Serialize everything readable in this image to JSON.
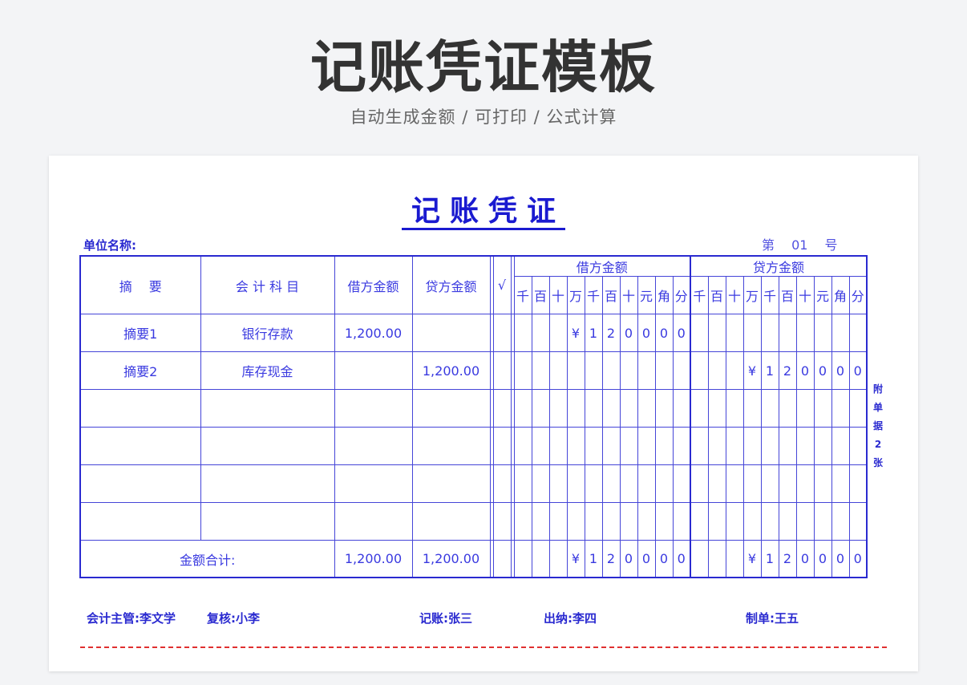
{
  "header": {
    "title": "记账凭证模板",
    "subtitle": "自动生成金额 / 可打印 / 公式计算"
  },
  "voucher": {
    "title": "记账凭证",
    "unit_label": "单位名称:",
    "number_label": "第 01 号",
    "columns": {
      "summary": "摘　 要",
      "account": "会 计 科 目",
      "debit": "借方金额",
      "credit": "贷方金额",
      "check": "√",
      "debit_digits": "借方金额",
      "credit_digits": "贷方金额"
    },
    "digit_units": [
      "千",
      "百",
      "十",
      "万",
      "千",
      "百",
      "十",
      "元",
      "角",
      "分"
    ],
    "rows": [
      {
        "summary": "摘要1",
        "account": "银行存款",
        "debit": "1,200.00",
        "credit": "",
        "debit_digits": [
          "",
          "",
          "",
          "¥",
          "1",
          "2",
          "0",
          "0",
          "0",
          "0"
        ],
        "credit_digits": [
          "",
          "",
          "",
          "",
          "",
          "",
          "",
          "",
          "",
          ""
        ]
      },
      {
        "summary": "摘要2",
        "account": "库存现金",
        "debit": "",
        "credit": "1,200.00",
        "debit_digits": [
          "",
          "",
          "",
          "",
          "",
          "",
          "",
          "",
          "",
          ""
        ],
        "credit_digits": [
          "",
          "",
          "",
          "¥",
          "1",
          "2",
          "0",
          "0",
          "0",
          "0"
        ]
      },
      {
        "summary": "",
        "account": "",
        "debit": "",
        "credit": "",
        "debit_digits": [
          "",
          "",
          "",
          "",
          "",
          "",
          "",
          "",
          "",
          ""
        ],
        "credit_digits": [
          "",
          "",
          "",
          "",
          "",
          "",
          "",
          "",
          "",
          ""
        ]
      },
      {
        "summary": "",
        "account": "",
        "debit": "",
        "credit": "",
        "debit_digits": [
          "",
          "",
          "",
          "",
          "",
          "",
          "",
          "",
          "",
          ""
        ],
        "credit_digits": [
          "",
          "",
          "",
          "",
          "",
          "",
          "",
          "",
          "",
          ""
        ]
      },
      {
        "summary": "",
        "account": "",
        "debit": "",
        "credit": "",
        "debit_digits": [
          "",
          "",
          "",
          "",
          "",
          "",
          "",
          "",
          "",
          ""
        ],
        "credit_digits": [
          "",
          "",
          "",
          "",
          "",
          "",
          "",
          "",
          "",
          ""
        ]
      },
      {
        "summary": "",
        "account": "",
        "debit": "",
        "credit": "",
        "debit_digits": [
          "",
          "",
          "",
          "",
          "",
          "",
          "",
          "",
          "",
          ""
        ],
        "credit_digits": [
          "",
          "",
          "",
          "",
          "",
          "",
          "",
          "",
          "",
          ""
        ]
      }
    ],
    "total": {
      "label": "金额合计:",
      "debit": "1,200.00",
      "credit": "1,200.00",
      "debit_digits": [
        "",
        "",
        "",
        "¥",
        "1",
        "2",
        "0",
        "0",
        "0",
        "0"
      ],
      "credit_digits": [
        "",
        "",
        "",
        "¥",
        "1",
        "2",
        "0",
        "0",
        "0",
        "0"
      ]
    },
    "attachment": [
      "附",
      "单",
      "据",
      "2",
      "张"
    ],
    "signatures": {
      "supervisor": "会计主管:李文学",
      "reviewer": "复核:小李",
      "bookkeeper": "记账:张三",
      "cashier": "出纳:李四",
      "preparer": "制单:王五"
    }
  }
}
